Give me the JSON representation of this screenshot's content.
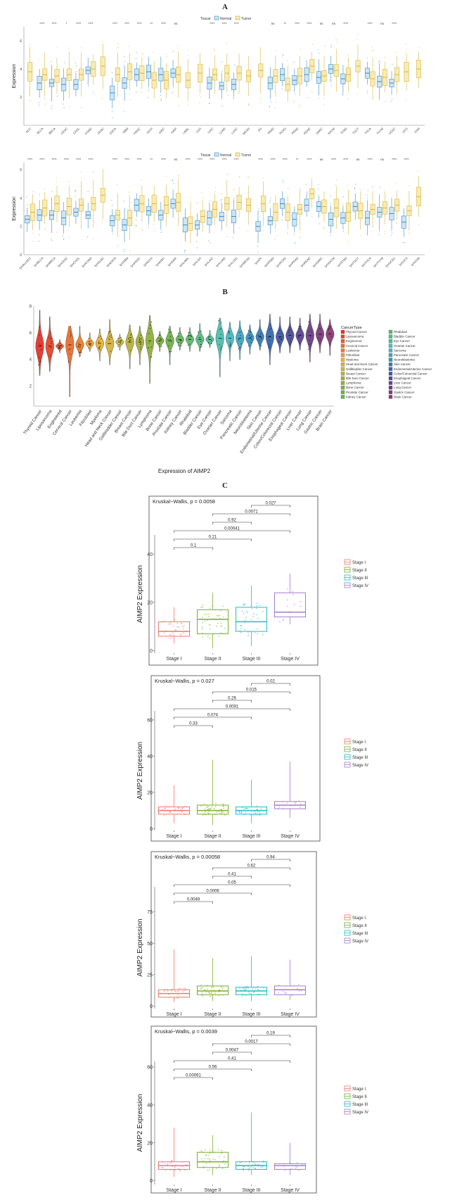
{
  "panel_letters": {
    "a": "A",
    "b": "B",
    "c": "C"
  },
  "colors": {
    "normal": "#3a8dc4",
    "tumor": "#f2d46b",
    "normal_fill": "#cfe5f3",
    "tumor_fill": "#f8ebb4",
    "stage1": "#f0776f",
    "stage2": "#7cae2f",
    "stage3": "#22bcc1",
    "stage4": "#a57ad3"
  },
  "chart_data": [
    {
      "type": "box",
      "title": "",
      "ylabel": "Expression",
      "ylim": [
        0,
        7
      ],
      "yticks": [
        2,
        4,
        6
      ],
      "legend_title": "Tissue",
      "legend": [
        "Normal",
        "Tumor"
      ],
      "categories": [
        "ACC",
        "BLCA",
        "BRCA",
        "CESC",
        "CHOL",
        "COAD",
        "DLBC",
        "ESCA",
        "GBM",
        "HNSC",
        "KICH",
        "KIRC",
        "KIRP",
        "LAML",
        "LGG",
        "LIHC",
        "LUAD",
        "LUSC",
        "MESO",
        "OV",
        "PAAD",
        "PCPG",
        "PRAD",
        "READ",
        "SARC",
        "SKCM",
        "STAD",
        "TGCT",
        "THCA",
        "THYM",
        "UCEC",
        "UCS",
        "UVM"
      ],
      "significance": [
        "",
        "****",
        "****",
        "*",
        "****",
        "****",
        "",
        "****",
        "****",
        "****",
        "**",
        "****",
        "ns",
        "",
        "",
        "****",
        "****",
        "****",
        "",
        "",
        "ns",
        "**",
        "****",
        "****",
        "ns",
        "ns",
        "****",
        "",
        "****",
        "ns",
        "****",
        "",
        ""
      ],
      "normal_medians": [
        null,
        3.0,
        3.0,
        2.9,
        2.9,
        3.9,
        null,
        2.3,
        3.0,
        3.6,
        3.8,
        3.6,
        3.7,
        null,
        null,
        3.0,
        2.8,
        2.9,
        null,
        null,
        3.0,
        3.6,
        3.2,
        3.6,
        3.4,
        4.0,
        3.3,
        null,
        3.7,
        3.1,
        3.0,
        null,
        null
      ],
      "tumor_medians": [
        3.8,
        3.6,
        3.5,
        3.6,
        3.6,
        4.0,
        4.2,
        3.6,
        3.8,
        3.7,
        3.2,
        3.2,
        3.6,
        3.2,
        3.7,
        3.6,
        3.7,
        3.7,
        3.5,
        3.9,
        3.5,
        2.9,
        3.5,
        4.2,
        3.5,
        3.9,
        3.6,
        4.2,
        3.3,
        3.4,
        3.6,
        3.8,
        4.0
      ]
    },
    {
      "type": "box",
      "title": "",
      "ylabel": "Expression",
      "ylim": [
        0,
        6.5
      ],
      "yticks": [
        0,
        2,
        4,
        6
      ],
      "legend_title": "Tissue",
      "legend": [
        "Normal",
        "Tumor"
      ],
      "categories": [
        "lymAccACC",
        "lymBLCA",
        "lymBRCA",
        "lymCESC",
        "lymCHOL",
        "lymCOAD",
        "lymDLBC",
        "lymESCA",
        "lymGBM",
        "lymHNSC",
        "lymKICH",
        "lymKIRC",
        "lymKIRP",
        "lymLAML",
        "lymLGG",
        "lymLIHC",
        "lymLUAD",
        "lymLUSC",
        "lymMESO",
        "lymOV",
        "lymPAAD",
        "lymPCPG",
        "lymPRAD",
        "lymREAD",
        "lymSARC",
        "lymSKCM",
        "lymSTAD",
        "lymTGCT",
        "lymTHCA",
        "lymTHYM",
        "lymUCEC",
        "lymUCS",
        "lymUVM"
      ],
      "significance": [
        "****",
        "****",
        "****",
        "****",
        "****",
        "****",
        "",
        "****",
        "****",
        "****",
        "**",
        "****",
        "ns",
        "****",
        "****",
        "****",
        "****",
        "****",
        "",
        "****",
        "****",
        "****",
        "**",
        "****",
        "ns",
        "****",
        "****",
        "ns",
        "****",
        "ns",
        "****",
        "****",
        ""
      ],
      "normal_medians": [
        2.5,
        2.8,
        2.8,
        2.6,
        3.0,
        2.8,
        null,
        2.4,
        2.1,
        3.5,
        3.1,
        2.8,
        3.6,
        2.1,
        2.1,
        2.6,
        2.7,
        2.7,
        null,
        2.0,
        2.4,
        3.6,
        2.5,
        3.5,
        3.4,
        2.5,
        2.6,
        3.4,
        2.6,
        3.0,
        2.9,
        2.3,
        null
      ],
      "tumor_medians": [
        3.0,
        3.3,
        3.6,
        3.4,
        3.5,
        3.6,
        4.2,
        2.8,
        2.6,
        3.6,
        3.6,
        3.5,
        3.7,
        2.2,
        2.7,
        3.2,
        3.6,
        3.7,
        3.5,
        3.6,
        3.0,
        3.0,
        3.2,
        4.3,
        3.4,
        3.3,
        3.0,
        3.1,
        3.2,
        3.3,
        3.5,
        3.1,
        4.1
      ]
    },
    {
      "type": "violin",
      "title": "",
      "xlabel": "Expression of AIMP2",
      "ylabel": "",
      "ylim": [
        0.5,
        8
      ],
      "yticks": [
        2,
        4,
        6,
        8
      ],
      "legend_title": "CancerType",
      "categories": [
        "Thyroid Cancer",
        "Liposarcoma",
        "Engineered",
        "Cervical Cancer",
        "Leukemia",
        "Fibroblast",
        "Myeloma",
        "Head and Neck Cancer",
        "Gallbladder Cancer",
        "Breast Cancer",
        "Bile Duct Cancer",
        "Lymphoma",
        "Bone Cancer",
        "Prostate Cancer",
        "Kidney Cancer",
        "Rhabdoid",
        "Bladder Cancer",
        "Eye Cancer",
        "Ovarian Cancer",
        "Sarcoma",
        "Pancreatic Cancer",
        "Neuroblastoma",
        "Skin Cancer",
        "Endometrial/Uterine Cancer",
        "Colon/Colorectal Cancer",
        "Esophageal Cancer",
        "Liver Cancer",
        "Lung Cancer",
        "Gastric Cancer",
        "Brain Cancer"
      ],
      "medians": [
        5.0,
        5.0,
        5.0,
        5.1,
        5.1,
        5.2,
        5.2,
        5.2,
        5.3,
        5.3,
        5.3,
        5.4,
        5.4,
        5.4,
        5.5,
        5.5,
        5.5,
        5.5,
        5.6,
        5.6,
        5.6,
        5.6,
        5.7,
        5.7,
        5.7,
        5.8,
        5.8,
        5.8,
        5.9,
        5.9
      ],
      "mins": [
        2.8,
        3.1,
        4.5,
        1.2,
        4.2,
        4.6,
        3.9,
        3.6,
        4.7,
        3.3,
        3.6,
        2.2,
        4.6,
        3.6,
        4.7,
        4.6,
        4.6,
        4.9,
        2.7,
        3.9,
        4.0,
        4.4,
        4.7,
        3.6,
        4.5,
        4.5,
        4.7,
        3.8,
        4.5,
        4.3
      ],
      "maxs": [
        7.7,
        7.2,
        5.5,
        6.5,
        6.5,
        6.0,
        6.3,
        7.0,
        5.9,
        6.6,
        6.5,
        7.3,
        6.1,
        6.5,
        6.4,
        6.4,
        6.7,
        6.2,
        7.1,
        6.8,
        6.9,
        6.6,
        7.0,
        7.4,
        7.2,
        7.2,
        7.1,
        7.4,
        7.4,
        7.0
      ]
    },
    {
      "type": "box",
      "title": "Kruskal−Wallis, p = 0.0058",
      "ylabel": "AIMP2 Expression",
      "ylim": [
        -1,
        48
      ],
      "yticks": [
        0,
        20,
        40
      ],
      "categories": [
        "Stage I",
        "Stage II",
        "Stage III",
        "Stage IV"
      ],
      "legend": [
        "Stage I",
        "Stage II",
        "Stage III",
        "Stage IV"
      ],
      "boxes": [
        {
          "min": 3,
          "q1": 6,
          "median": 8,
          "q3": 12,
          "max": 18
        },
        {
          "min": 1,
          "q1": 7,
          "median": 13,
          "q3": 17,
          "max": 24
        },
        {
          "min": 2,
          "q1": 8,
          "median": 12,
          "q3": 18,
          "max": 27
        },
        {
          "min": 11,
          "q1": 14,
          "median": 16,
          "q3": 24,
          "max": 32
        }
      ],
      "comparisons": [
        {
          "pair": [
            "Stage I",
            "Stage II"
          ],
          "p": "0.1"
        },
        {
          "pair": [
            "Stage I",
            "Stage III"
          ],
          "p": "0.21"
        },
        {
          "pair": [
            "Stage I",
            "Stage IV"
          ],
          "p": "0.00041"
        },
        {
          "pair": [
            "Stage II",
            "Stage III"
          ],
          "p": "0.92"
        },
        {
          "pair": [
            "Stage II",
            "Stage IV"
          ],
          "p": "0.0071"
        },
        {
          "pair": [
            "Stage III",
            "Stage IV"
          ],
          "p": "0.027"
        }
      ]
    },
    {
      "type": "box",
      "title": "Kruskal−Wallis, p = 0.027",
      "ylabel": "AIMP2 Expression",
      "ylim": [
        -1,
        65
      ],
      "yticks": [
        0,
        20,
        40,
        60
      ],
      "categories": [
        "Stage I",
        "Stage II",
        "Stage III",
        "Stage IV"
      ],
      "legend": [
        "Stage I",
        "Stage II",
        "Stage III",
        "Stage IV"
      ],
      "boxes": [
        {
          "min": 3,
          "q1": 8,
          "median": 10,
          "q3": 12,
          "max": 24
        },
        {
          "min": 2,
          "q1": 8,
          "median": 10,
          "q3": 13,
          "max": 38
        },
        {
          "min": 3,
          "q1": 8,
          "median": 10,
          "q3": 12,
          "max": 27
        },
        {
          "min": 6,
          "q1": 11,
          "median": 13,
          "q3": 15,
          "max": 37
        }
      ],
      "comparisons": [
        {
          "pair": [
            "Stage I",
            "Stage II"
          ],
          "p": "0.33"
        },
        {
          "pair": [
            "Stage I",
            "Stage III"
          ],
          "p": "0.074"
        },
        {
          "pair": [
            "Stage I",
            "Stage IV"
          ],
          "p": "0.0091"
        },
        {
          "pair": [
            "Stage II",
            "Stage III"
          ],
          "p": "0.26"
        },
        {
          "pair": [
            "Stage II",
            "Stage IV"
          ],
          "p": "0.015"
        },
        {
          "pair": [
            "Stage III",
            "Stage IV"
          ],
          "p": "0.02"
        }
      ]
    },
    {
      "type": "box",
      "title": "Kruskal−Wallis, p = 0.00058",
      "ylabel": "AIMP2 Expression",
      "ylim": [
        -2,
        95
      ],
      "yticks": [
        0,
        25,
        50,
        75
      ],
      "categories": [
        "Stage I",
        "Stage II",
        "Stage III",
        "Stage IV"
      ],
      "legend": [
        "Stage I",
        "Stage II",
        "Stage III",
        "Stage IV"
      ],
      "boxes": [
        {
          "min": 3,
          "q1": 7,
          "median": 10,
          "q3": 13,
          "max": 45
        },
        {
          "min": 4,
          "q1": 9,
          "median": 12,
          "q3": 16,
          "max": 38
        },
        {
          "min": 4,
          "q1": 9,
          "median": 12,
          "q3": 15,
          "max": 40
        },
        {
          "min": 5,
          "q1": 9,
          "median": 13,
          "q3": 16,
          "max": 37
        }
      ],
      "comparisons": [
        {
          "pair": [
            "Stage I",
            "Stage II"
          ],
          "p": "0.0049"
        },
        {
          "pair": [
            "Stage I",
            "Stage III"
          ],
          "p": "0.0006"
        },
        {
          "pair": [
            "Stage I",
            "Stage IV"
          ],
          "p": "0.05"
        },
        {
          "pair": [
            "Stage II",
            "Stage III"
          ],
          "p": "0.41"
        },
        {
          "pair": [
            "Stage II",
            "Stage IV"
          ],
          "p": "0.62"
        },
        {
          "pair": [
            "Stage III",
            "Stage IV"
          ],
          "p": "0.94"
        }
      ]
    },
    {
      "type": "box",
      "title": "Kruskal−Wallis, p = 0.0039",
      "ylabel": "AIMP2 Expression",
      "ylim": [
        -2,
        63
      ],
      "yticks": [
        0,
        20,
        40,
        60
      ],
      "categories": [
        "Stage I",
        "Stage II",
        "Stage III",
        "Stage IV"
      ],
      "legend": [
        "Stage I",
        "Stage II",
        "Stage III",
        "Stage IV"
      ],
      "boxes": [
        {
          "min": 2,
          "q1": 6,
          "median": 8,
          "q3": 10,
          "max": 28
        },
        {
          "min": 3,
          "q1": 7,
          "median": 10,
          "q3": 15,
          "max": 24
        },
        {
          "min": 3,
          "q1": 6,
          "median": 8,
          "q3": 10,
          "max": 36
        },
        {
          "min": 3,
          "q1": 6,
          "median": 8,
          "q3": 9,
          "max": 20
        }
      ],
      "comparisons": [
        {
          "pair": [
            "Stage I",
            "Stage II"
          ],
          "p": "0.00091"
        },
        {
          "pair": [
            "Stage I",
            "Stage III"
          ],
          "p": "0.56"
        },
        {
          "pair": [
            "Stage I",
            "Stage IV"
          ],
          "p": "0.41"
        },
        {
          "pair": [
            "Stage II",
            "Stage III"
          ],
          "p": "0.0047"
        },
        {
          "pair": [
            "Stage II",
            "Stage IV"
          ],
          "p": "0.0017"
        },
        {
          "pair": [
            "Stage III",
            "Stage IV"
          ],
          "p": "0.19"
        }
      ]
    }
  ]
}
